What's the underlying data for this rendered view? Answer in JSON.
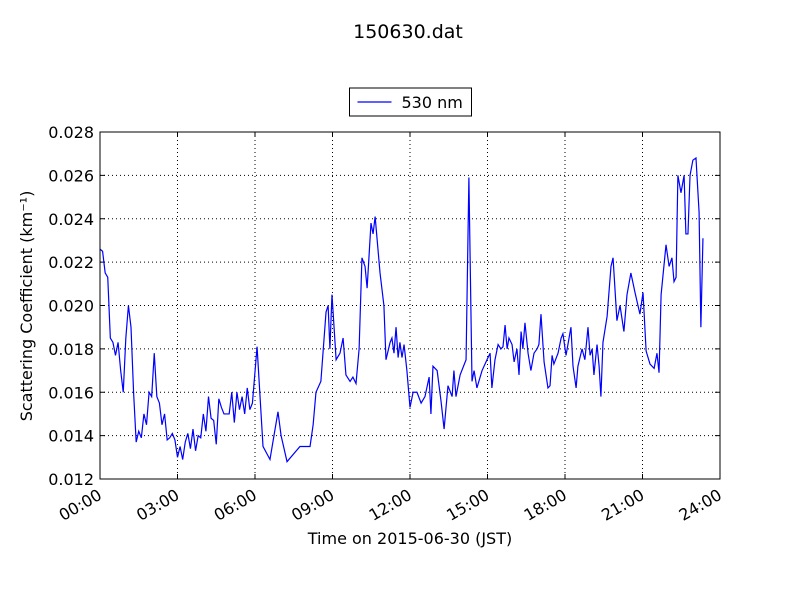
{
  "chart_data": {
    "type": "line",
    "title": "150630.dat",
    "x_label": "Time on 2015-06-30 (JST)",
    "y_label": "Scattering Coefficient (km⁻¹)",
    "xlim": [
      0,
      24
    ],
    "xticks": [
      {
        "value": 0,
        "label": "00:00"
      },
      {
        "value": 3,
        "label": "03:00"
      },
      {
        "value": 6,
        "label": "06:00"
      },
      {
        "value": 9,
        "label": "09:00"
      },
      {
        "value": 12,
        "label": "12:00"
      },
      {
        "value": 15,
        "label": "15:00"
      },
      {
        "value": 18,
        "label": "18:00"
      },
      {
        "value": 21,
        "label": "21:00"
      },
      {
        "value": 24,
        "label": "24:00"
      }
    ],
    "ylim": [
      0.012,
      0.028
    ],
    "yticks": [
      0.012,
      0.014,
      0.016,
      0.018,
      {
        "value": 0.02,
        "label": "0.020"
      },
      0.022,
      0.024,
      0.026,
      0.028
    ],
    "grid": true,
    "legend": "upper center",
    "x": [
      0,
      0.1,
      0.2,
      0.3,
      0.4,
      0.5,
      0.6,
      0.7,
      0.8,
      0.9,
      1.0,
      1.1,
      1.2,
      1.3,
      1.4,
      1.5,
      1.6,
      1.7,
      1.8,
      1.9,
      2.0,
      2.1,
      2.2,
      2.3,
      2.4,
      2.5,
      2.6,
      2.7,
      2.8,
      2.9,
      3.0,
      3.1,
      3.2,
      3.3,
      3.4,
      3.5,
      3.6,
      3.7,
      3.8,
      3.9,
      4.0,
      4.1,
      4.2,
      4.3,
      4.4,
      4.5,
      4.6,
      4.7,
      4.8,
      4.9,
      5.0,
      5.1,
      5.2,
      5.3,
      5.4,
      5.5,
      5.6,
      5.7,
      5.8,
      5.9,
      6.08,
      6.31,
      6.58,
      6.89,
      7.01,
      7.24,
      7.74,
      8.13,
      8.25,
      8.36,
      8.55,
      8.75,
      8.83,
      8.9,
      8.98,
      9.14,
      9.29,
      9.41,
      9.52,
      9.68,
      9.79,
      9.91,
      10.03,
      10.14,
      10.26,
      10.34,
      10.49,
      10.57,
      10.65,
      10.84,
      10.99,
      11.07,
      11.23,
      11.3,
      11.38,
      11.46,
      11.54,
      11.61,
      11.69,
      11.77,
      11.88,
      12.0,
      12.12,
      12.27,
      12.43,
      12.58,
      12.74,
      12.81,
      12.89,
      13.05,
      13.2,
      13.32,
      13.47,
      13.63,
      13.7,
      13.78,
      13.94,
      14.17,
      14.28,
      14.4,
      14.48,
      14.59,
      14.79,
      14.98,
      15.1,
      15.17,
      15.29,
      15.41,
      15.52,
      15.6,
      15.68,
      15.76,
      15.83,
      15.95,
      16.03,
      16.14,
      16.22,
      16.3,
      16.37,
      16.45,
      16.57,
      16.68,
      16.8,
      16.92,
      16.99,
      17.07,
      17.19,
      17.34,
      17.42,
      17.5,
      17.57,
      17.73,
      17.85,
      17.92,
      18.04,
      18.23,
      18.31,
      18.43,
      18.5,
      18.66,
      18.77,
      18.89,
      18.97,
      19.05,
      19.12,
      19.24,
      19.32,
      19.39,
      19.47,
      19.63,
      19.78,
      19.86,
      20.01,
      20.13,
      20.28,
      20.4,
      20.55,
      20.71,
      20.9,
      21.02,
      21.14,
      21.29,
      21.45,
      21.56,
      21.64,
      21.72,
      21.91,
      22.03,
      22.14,
      22.22,
      22.3,
      22.37,
      22.49,
      22.61,
      22.68,
      22.76,
      22.84,
      22.95,
      23.07,
      23.19,
      23.26,
      23.34
    ],
    "series": [
      {
        "name": "530 nm",
        "color": "#0000ff",
        "values": [
          0.0226,
          0.0225,
          0.0215,
          0.0213,
          0.0185,
          0.0183,
          0.0177,
          0.0183,
          0.017,
          0.016,
          0.0185,
          0.02,
          0.019,
          0.016,
          0.0137,
          0.0142,
          0.0139,
          0.015,
          0.0145,
          0.016,
          0.0158,
          0.0178,
          0.0158,
          0.0155,
          0.0145,
          0.015,
          0.0138,
          0.0139,
          0.0141,
          0.0138,
          0.013,
          0.0135,
          0.0129,
          0.0137,
          0.0141,
          0.0134,
          0.0143,
          0.0133,
          0.014,
          0.0139,
          0.015,
          0.0142,
          0.0158,
          0.0148,
          0.0147,
          0.0136,
          0.0157,
          0.0153,
          0.015,
          0.015,
          0.015,
          0.016,
          0.0146,
          0.016,
          0.0152,
          0.0158,
          0.015,
          0.0162,
          0.0152,
          0.0155,
          0.0181,
          0.0135,
          0.0129,
          0.0151,
          0.014,
          0.0128,
          0.0135,
          0.0135,
          0.0145,
          0.016,
          0.0165,
          0.0197,
          0.02,
          0.018,
          0.0205,
          0.0175,
          0.0178,
          0.0185,
          0.0168,
          0.0165,
          0.0167,
          0.0164,
          0.018,
          0.0222,
          0.0218,
          0.0208,
          0.0238,
          0.0233,
          0.0241,
          0.0215,
          0.02,
          0.0175,
          0.0183,
          0.0185,
          0.0178,
          0.019,
          0.0176,
          0.0183,
          0.0176,
          0.0182,
          0.017,
          0.0153,
          0.016,
          0.016,
          0.0155,
          0.0158,
          0.0167,
          0.015,
          0.0172,
          0.017,
          0.0156,
          0.0143,
          0.0163,
          0.0158,
          0.017,
          0.0158,
          0.0168,
          0.0175,
          0.0259,
          0.0165,
          0.017,
          0.0162,
          0.017,
          0.0175,
          0.0178,
          0.0162,
          0.0175,
          0.0182,
          0.018,
          0.0181,
          0.0191,
          0.018,
          0.0185,
          0.0182,
          0.0174,
          0.018,
          0.0168,
          0.0188,
          0.018,
          0.0192,
          0.0178,
          0.017,
          0.0178,
          0.018,
          0.0182,
          0.0196,
          0.0174,
          0.0162,
          0.0163,
          0.0177,
          0.0173,
          0.0178,
          0.0185,
          0.0187,
          0.0177,
          0.019,
          0.0172,
          0.0162,
          0.0172,
          0.018,
          0.0175,
          0.019,
          0.0177,
          0.018,
          0.0168,
          0.0182,
          0.0172,
          0.0158,
          0.0183,
          0.0195,
          0.0218,
          0.0222,
          0.0193,
          0.02,
          0.0188,
          0.0205,
          0.0215,
          0.0206,
          0.0196,
          0.0206,
          0.0179,
          0.0173,
          0.0171,
          0.0178,
          0.0169,
          0.0205,
          0.0228,
          0.0218,
          0.0222,
          0.0211,
          0.0213,
          0.026,
          0.0252,
          0.026,
          0.0233,
          0.0233,
          0.026,
          0.0267,
          0.0268,
          0.0243,
          0.019,
          0.0231
        ]
      }
    ]
  }
}
